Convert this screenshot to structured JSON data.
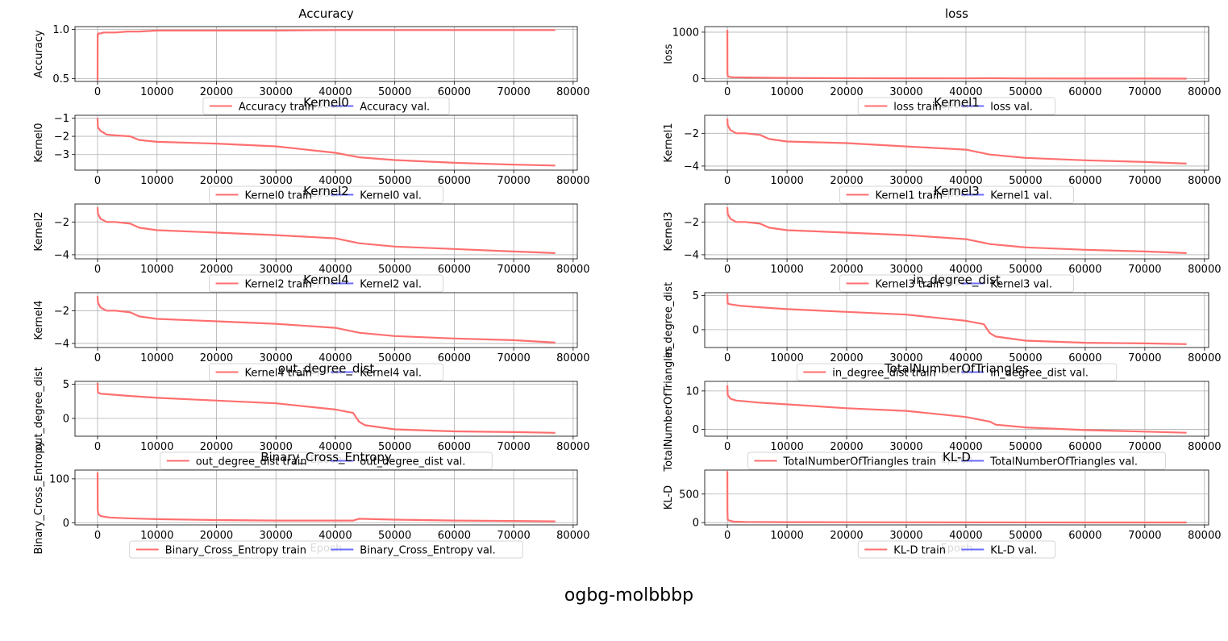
{
  "figure": {
    "suptitle": "ogbg-molbbbp"
  },
  "colors": {
    "train": "#ff6f6f",
    "val": "#6b6bff",
    "grid": "#b0b0b0",
    "axis": "#000000"
  },
  "chart_data": [
    {
      "type": "line",
      "title": "Accuracy",
      "ylabel": "Accuracy",
      "xlabel": "Epoch",
      "xlim": [
        -3800,
        80700
      ],
      "ylim": [
        0.47,
        1.03
      ],
      "xticks": [
        0,
        10000,
        20000,
        30000,
        40000,
        50000,
        60000,
        70000,
        80000
      ],
      "yticks": [
        0.5,
        1.0
      ],
      "ytick_labels": [
        "0.5",
        "1.0"
      ],
      "grid": true,
      "legend": "lower-center",
      "series": [
        {
          "name": "Accuracy train",
          "x": [
            0,
            10,
            20,
            100,
            500,
            1000,
            3000,
            5000,
            7000,
            10000,
            20000,
            30000,
            40000,
            50000,
            60000,
            70000,
            77000
          ],
          "y": [
            0.48,
            0.95,
            0.93,
            0.96,
            0.96,
            0.97,
            0.97,
            0.98,
            0.98,
            0.99,
            0.99,
            0.99,
            0.995,
            0.995,
            0.995,
            0.995,
            0.995
          ]
        },
        {
          "name": "Accuracy val.",
          "x": [],
          "y": []
        }
      ]
    },
    {
      "type": "line",
      "title": "loss",
      "ylabel": "loss",
      "xlabel": "Epoch",
      "xlim": [
        -3800,
        80700
      ],
      "ylim": [
        -60,
        1120
      ],
      "xticks": [
        0,
        10000,
        20000,
        30000,
        40000,
        50000,
        60000,
        70000,
        80000
      ],
      "yticks": [
        0,
        1000
      ],
      "ytick_labels": [
        "0",
        "1000"
      ],
      "grid": true,
      "legend": "lower-center",
      "series": [
        {
          "name": "loss train",
          "x": [
            0,
            10,
            50,
            200,
            500,
            1000,
            3000,
            6000,
            10000,
            20000,
            30000,
            40000,
            44000,
            50000,
            60000,
            70000,
            77000
          ],
          "y": [
            1050,
            120,
            60,
            40,
            35,
            30,
            25,
            20,
            15,
            10,
            8,
            6,
            10,
            5,
            3,
            2,
            1
          ]
        },
        {
          "name": "loss val.",
          "x": [],
          "y": []
        }
      ]
    },
    {
      "type": "line",
      "title": "Kernel0",
      "ylabel": "Kernel0",
      "xlabel": "Epoch",
      "xlim": [
        -3800,
        80700
      ],
      "ylim": [
        -3.85,
        -0.85
      ],
      "xticks": [
        0,
        10000,
        20000,
        30000,
        40000,
        50000,
        60000,
        70000,
        80000
      ],
      "yticks": [
        -1,
        -2,
        -3
      ],
      "ytick_labels": [
        "−1",
        "−2",
        "−3"
      ],
      "grid": true,
      "legend": "lower-center",
      "series": [
        {
          "name": "Kernel0 train",
          "x": [
            0,
            50,
            500,
            1500,
            3000,
            5500,
            7000,
            10000,
            20000,
            30000,
            40000,
            44000,
            50000,
            60000,
            70000,
            77000
          ],
          "y": [
            -1.0,
            -1.5,
            -1.7,
            -1.9,
            -1.95,
            -2.0,
            -2.2,
            -2.3,
            -2.4,
            -2.55,
            -2.9,
            -3.15,
            -3.3,
            -3.45,
            -3.55,
            -3.6
          ]
        },
        {
          "name": "Kernel0 val.",
          "x": [],
          "y": []
        }
      ]
    },
    {
      "type": "line",
      "title": "Kernel1",
      "ylabel": "Kernel1",
      "xlabel": "Epoch",
      "xlim": [
        -3800,
        80700
      ],
      "ylim": [
        -4.25,
        -0.9
      ],
      "xticks": [
        0,
        10000,
        20000,
        30000,
        40000,
        50000,
        60000,
        70000,
        80000
      ],
      "yticks": [
        -2,
        -4
      ],
      "ytick_labels": [
        "−2",
        "−4"
      ],
      "grid": true,
      "legend": "lower-center",
      "series": [
        {
          "name": "Kernel1 train",
          "x": [
            0,
            50,
            500,
            1500,
            3000,
            5500,
            7000,
            10000,
            20000,
            30000,
            40000,
            44000,
            50000,
            60000,
            70000,
            77000
          ],
          "y": [
            -1.1,
            -1.5,
            -1.8,
            -2.0,
            -2.0,
            -2.1,
            -2.35,
            -2.5,
            -2.6,
            -2.8,
            -3.0,
            -3.3,
            -3.5,
            -3.65,
            -3.75,
            -3.85
          ]
        },
        {
          "name": "Kernel1 val.",
          "x": [],
          "y": []
        }
      ]
    },
    {
      "type": "line",
      "title": "Kernel2",
      "ylabel": "Kernel2",
      "xlabel": "Epoch",
      "xlim": [
        -3800,
        80700
      ],
      "ylim": [
        -4.25,
        -0.9
      ],
      "xticks": [
        0,
        10000,
        20000,
        30000,
        40000,
        50000,
        60000,
        70000,
        80000
      ],
      "yticks": [
        -2,
        -4
      ],
      "ytick_labels": [
        "−2",
        "−4"
      ],
      "grid": true,
      "legend": "lower-center",
      "series": [
        {
          "name": "Kernel2 train",
          "x": [
            0,
            50,
            500,
            1500,
            3000,
            5500,
            7000,
            10000,
            20000,
            30000,
            40000,
            44000,
            50000,
            60000,
            70000,
            77000
          ],
          "y": [
            -1.1,
            -1.5,
            -1.8,
            -2.0,
            -2.0,
            -2.1,
            -2.35,
            -2.5,
            -2.65,
            -2.8,
            -3.0,
            -3.3,
            -3.5,
            -3.65,
            -3.8,
            -3.9
          ]
        },
        {
          "name": "Kernel2 val.",
          "x": [],
          "y": []
        }
      ]
    },
    {
      "type": "line",
      "title": "Kernel3",
      "ylabel": "Kernel3",
      "xlabel": "Epoch",
      "xlim": [
        -3800,
        80700
      ],
      "ylim": [
        -4.25,
        -0.9
      ],
      "xticks": [
        0,
        10000,
        20000,
        30000,
        40000,
        50000,
        60000,
        70000,
        80000
      ],
      "yticks": [
        -2,
        -4
      ],
      "ytick_labels": [
        "−2",
        "−4"
      ],
      "grid": true,
      "legend": "lower-center",
      "series": [
        {
          "name": "Kernel3 train",
          "x": [
            0,
            50,
            500,
            1500,
            3000,
            5500,
            7000,
            10000,
            20000,
            30000,
            40000,
            44000,
            50000,
            60000,
            70000,
            77000
          ],
          "y": [
            -1.1,
            -1.5,
            -1.8,
            -2.0,
            -2.0,
            -2.1,
            -2.35,
            -2.5,
            -2.65,
            -2.8,
            -3.05,
            -3.35,
            -3.55,
            -3.7,
            -3.8,
            -3.9
          ]
        },
        {
          "name": "Kernel3 val.",
          "x": [],
          "y": []
        }
      ]
    },
    {
      "type": "line",
      "title": "Kernel4",
      "ylabel": "Kernel4",
      "xlabel": "Epoch",
      "xlim": [
        -3800,
        80700
      ],
      "ylim": [
        -4.25,
        -0.9
      ],
      "xticks": [
        0,
        10000,
        20000,
        30000,
        40000,
        50000,
        60000,
        70000,
        80000
      ],
      "yticks": [
        -2,
        -4
      ],
      "ytick_labels": [
        "−2",
        "−4"
      ],
      "grid": true,
      "legend": "lower-center",
      "series": [
        {
          "name": "Kernel4 train",
          "x": [
            0,
            50,
            500,
            1500,
            3000,
            5500,
            7000,
            10000,
            20000,
            30000,
            40000,
            44000,
            50000,
            60000,
            70000,
            77000
          ],
          "y": [
            -1.1,
            -1.5,
            -1.8,
            -2.0,
            -2.0,
            -2.1,
            -2.35,
            -2.5,
            -2.65,
            -2.8,
            -3.05,
            -3.35,
            -3.55,
            -3.7,
            -3.8,
            -3.95
          ]
        },
        {
          "name": "Kernel4 val.",
          "x": [],
          "y": []
        }
      ]
    },
    {
      "type": "line",
      "title": "in_degree_dist",
      "ylabel": "in_degree_dist",
      "xlabel": "Epoch",
      "xlim": [
        -3800,
        80700
      ],
      "ylim": [
        -2.6,
        5.4
      ],
      "xticks": [
        0,
        10000,
        20000,
        30000,
        40000,
        50000,
        60000,
        70000,
        80000
      ],
      "yticks": [
        5,
        0
      ],
      "ytick_labels": [
        "5",
        "0"
      ],
      "grid": true,
      "legend": "lower-center",
      "series": [
        {
          "name": "in_degree_dist train",
          "x": [
            0,
            50,
            500,
            2000,
            5000,
            10000,
            20000,
            30000,
            40000,
            43000,
            44000,
            45000,
            50000,
            60000,
            70000,
            77000
          ],
          "y": [
            5.2,
            3.8,
            3.7,
            3.5,
            3.3,
            3.0,
            2.6,
            2.2,
            1.3,
            0.8,
            -0.5,
            -1.0,
            -1.6,
            -1.9,
            -2.0,
            -2.1
          ]
        },
        {
          "name": "in_degree_dist val.",
          "x": [],
          "y": []
        }
      ]
    },
    {
      "type": "line",
      "title": "out_degree_dist",
      "ylabel": "out_degree_dist",
      "xlabel": "Epoch",
      "xlim": [
        -3800,
        80700
      ],
      "ylim": [
        -2.6,
        5.4
      ],
      "xticks": [
        0,
        10000,
        20000,
        30000,
        40000,
        50000,
        60000,
        70000,
        80000
      ],
      "yticks": [
        5,
        0
      ],
      "ytick_labels": [
        "5",
        "0"
      ],
      "grid": true,
      "legend": "lower-center",
      "series": [
        {
          "name": "out_degree_dist train",
          "x": [
            0,
            50,
            500,
            2000,
            5000,
            10000,
            20000,
            30000,
            40000,
            43000,
            44000,
            45000,
            50000,
            60000,
            70000,
            77000
          ],
          "y": [
            5.2,
            3.8,
            3.6,
            3.5,
            3.3,
            3.0,
            2.6,
            2.2,
            1.3,
            0.8,
            -0.5,
            -1.0,
            -1.6,
            -1.9,
            -2.0,
            -2.1
          ]
        },
        {
          "name": "out_degree_dist val.",
          "x": [],
          "y": []
        }
      ]
    },
    {
      "type": "line",
      "title": "TotalNumberOfTriangles",
      "ylabel": "TotalNumberOfTriangles",
      "xlabel": "Epoch",
      "xlim": [
        -3800,
        80700
      ],
      "ylim": [
        -1.8,
        12.5
      ],
      "xticks": [
        0,
        10000,
        20000,
        30000,
        40000,
        50000,
        60000,
        70000,
        80000
      ],
      "yticks": [
        10,
        0
      ],
      "ytick_labels": [
        "10",
        "0"
      ],
      "grid": true,
      "legend": "lower-center",
      "series": [
        {
          "name": "TotalNumberOfTriangles train",
          "x": [
            0,
            50,
            500,
            1500,
            3000,
            5000,
            10000,
            20000,
            30000,
            40000,
            44000,
            45000,
            50000,
            60000,
            70000,
            77000
          ],
          "y": [
            11.5,
            9.0,
            8.0,
            7.5,
            7.3,
            7.0,
            6.5,
            5.5,
            4.8,
            3.2,
            2.0,
            1.2,
            0.5,
            -0.2,
            -0.6,
            -0.9
          ]
        },
        {
          "name": "TotalNumberOfTriangles val.",
          "x": [],
          "y": []
        }
      ]
    },
    {
      "type": "line",
      "title": "Binary_Cross_Entropy",
      "ylabel": "Binary_Cross_Entropy",
      "xlabel": "Epoch",
      "xlim": [
        -3800,
        80700
      ],
      "ylim": [
        -5,
        120
      ],
      "xticks": [
        0,
        10000,
        20000,
        30000,
        40000,
        50000,
        60000,
        70000,
        80000
      ],
      "yticks": [
        100,
        0
      ],
      "ytick_labels": [
        "100",
        "0"
      ],
      "grid": true,
      "legend": "lower-center",
      "series": [
        {
          "name": "Binary_Cross_Entropy train",
          "x": [
            0,
            20,
            100,
            500,
            2000,
            5000,
            10000,
            20000,
            30000,
            40000,
            43000,
            44000,
            50000,
            60000,
            70000,
            77000
          ],
          "y": [
            115,
            30,
            20,
            15,
            12,
            10,
            8,
            6,
            5,
            5,
            5,
            9,
            7,
            5,
            4,
            3
          ]
        },
        {
          "name": "Binary_Cross_Entropy val.",
          "x": [],
          "y": []
        }
      ]
    },
    {
      "type": "line",
      "title": "KL-D",
      "ylabel": "KL-D",
      "xlabel": "Epoch",
      "xlim": [
        -3800,
        80700
      ],
      "ylim": [
        -40,
        920
      ],
      "xticks": [
        0,
        10000,
        20000,
        30000,
        40000,
        50000,
        60000,
        70000,
        80000
      ],
      "yticks": [
        500,
        0
      ],
      "ytick_labels": [
        "500",
        "0"
      ],
      "grid": true,
      "legend": "lower-center",
      "series": [
        {
          "name": "KL-D train",
          "x": [
            0,
            10,
            50,
            200,
            1000,
            3000,
            10000,
            20000,
            40000,
            60000,
            77000
          ],
          "y": [
            900,
            200,
            60,
            40,
            20,
            12,
            8,
            6,
            4,
            3,
            2
          ]
        },
        {
          "name": "KL-D val.",
          "x": [],
          "y": []
        }
      ]
    }
  ]
}
